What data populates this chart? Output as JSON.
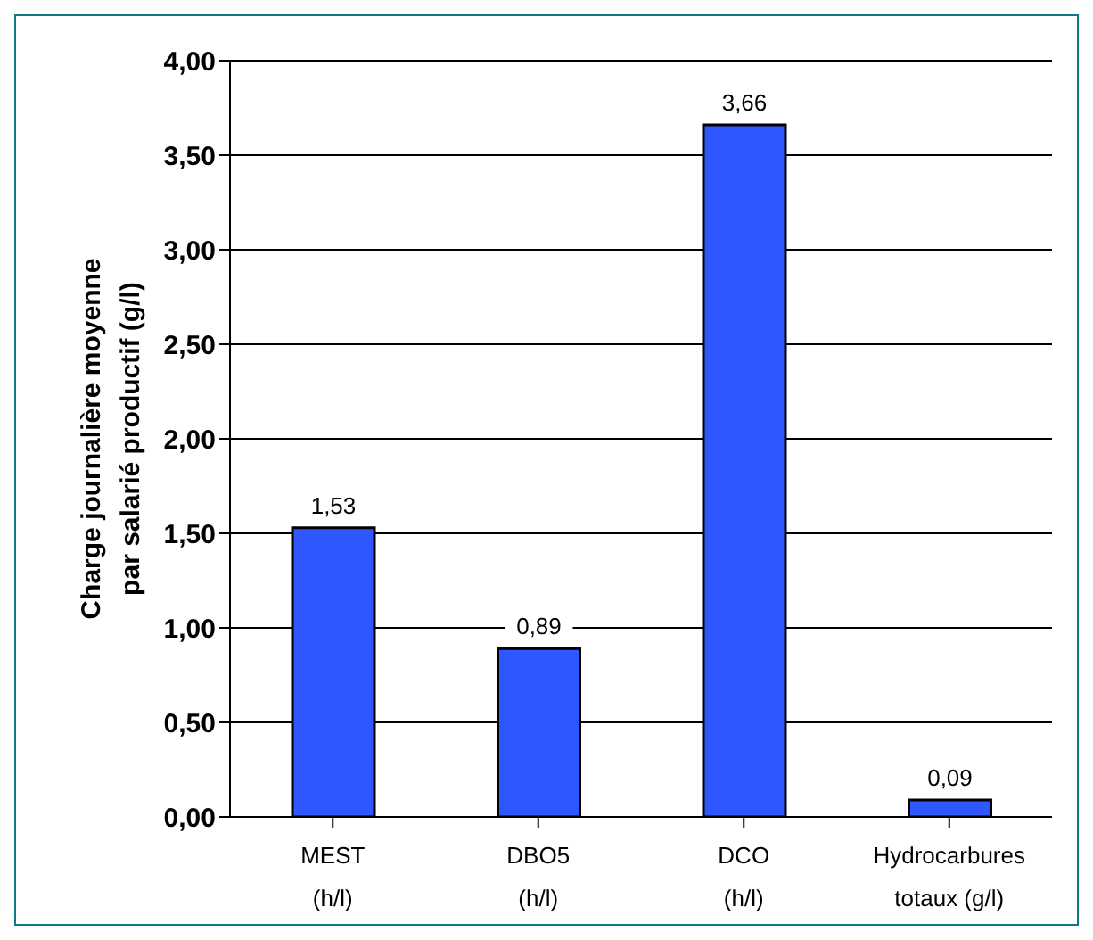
{
  "chart_data": {
    "type": "bar",
    "ylabel": "Charge journalière moyenne par salarié productif (g/l)",
    "categories": [
      "MEST (h/l)",
      "DBO5 (h/l)",
      "DCO (h/l)",
      "Hydrocarbures totaux (g/l)"
    ],
    "values": [
      1.53,
      0.89,
      3.66,
      0.09
    ],
    "value_labels": [
      "1,53",
      "0,89",
      "3,66",
      "0,09"
    ],
    "color": "#3056ff",
    "ylim": [
      0,
      4
    ],
    "yticks": [
      {
        "value": 0,
        "label": "0,00"
      },
      {
        "value": 0.5,
        "label": "0,50"
      },
      {
        "value": 1,
        "label": "1,00"
      },
      {
        "value": 1.5,
        "label": "1,50"
      },
      {
        "value": 2,
        "label": "2,00"
      },
      {
        "value": 2.5,
        "label": "2,50"
      },
      {
        "value": 3,
        "label": "3,00"
      },
      {
        "value": 3.5,
        "label": "3,50"
      },
      {
        "value": 4,
        "label": "4,00"
      }
    ],
    "grid": "y",
    "legend": false
  }
}
